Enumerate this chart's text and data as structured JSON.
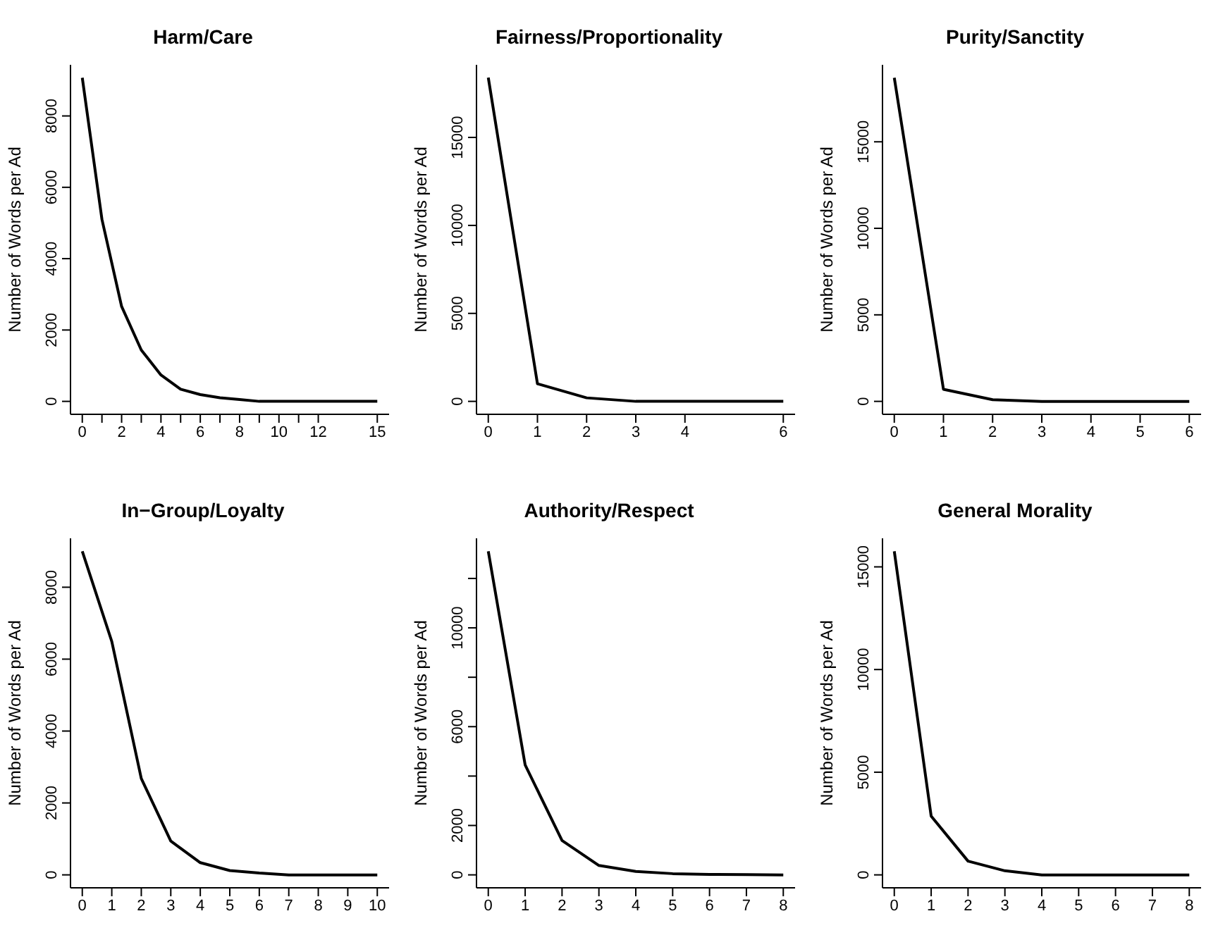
{
  "chart_data": [
    {
      "type": "line",
      "title": "Harm/Care",
      "ylabel": "Number of Words per Ad",
      "color": "#000000",
      "x": [
        0,
        1,
        2,
        3,
        4,
        5,
        6,
        7,
        8,
        9,
        10,
        11,
        12,
        15
      ],
      "values": [
        9070,
        5100,
        2660,
        1440,
        740,
        340,
        190,
        100,
        50,
        0,
        0,
        0,
        0,
        0
      ],
      "xlim": [
        -0.6,
        15.6
      ],
      "xticks": [
        0,
        {
          "value": 1,
          "label": null
        },
        2,
        {
          "value": 3,
          "label": null
        },
        4,
        {
          "value": 5,
          "label": null
        },
        6,
        {
          "value": 7,
          "label": null
        },
        8,
        {
          "value": 9,
          "label": null
        },
        10,
        {
          "value": 11,
          "label": null
        },
        12,
        15
      ],
      "ylim": [
        -363,
        9433
      ],
      "yticks": [
        0,
        2000,
        4000,
        6000,
        8000
      ]
    },
    {
      "type": "line",
      "title": "Fairness/Proportionality",
      "ylabel": "Number of Words per Ad",
      "color": "#000000",
      "x": [
        0,
        1,
        2,
        3,
        4,
        6
      ],
      "values": [
        18400,
        1000,
        200,
        0,
        0,
        0
      ],
      "xlim": [
        -0.24,
        6.24
      ],
      "xticks": [
        0,
        1,
        2,
        3,
        4,
        6
      ],
      "ylim": [
        -736,
        19126
      ],
      "yticks": [
        0,
        5000,
        10000,
        15000
      ]
    },
    {
      "type": "line",
      "title": "Purity/Sanctity",
      "ylabel": "Number of Words per Ad",
      "color": "#000000",
      "x": [
        0,
        1,
        2,
        3,
        4,
        5,
        6
      ],
      "values": [
        18700,
        700,
        100,
        0,
        0,
        0,
        0
      ],
      "xlim": [
        -0.24,
        6.24
      ],
      "xticks": [
        0,
        1,
        2,
        3,
        4,
        5,
        6
      ],
      "ylim": [
        -748,
        19448
      ],
      "yticks": [
        0,
        5000,
        10000,
        15000
      ]
    },
    {
      "type": "line",
      "title": "In−Group/Loyalty",
      "ylabel": "Number of Words per Ad",
      "color": "#000000",
      "x": [
        0,
        1,
        2,
        3,
        4,
        5,
        6,
        7,
        8,
        9,
        10
      ],
      "values": [
        9000,
        6490,
        2680,
        940,
        340,
        120,
        50,
        0,
        0,
        0,
        0
      ],
      "xlim": [
        -0.4,
        10.4
      ],
      "xticks": [
        0,
        1,
        2,
        3,
        4,
        5,
        6,
        7,
        8,
        9,
        10
      ],
      "ylim": [
        -360,
        9360
      ],
      "yticks": [
        0,
        2000,
        4000,
        6000,
        8000
      ]
    },
    {
      "type": "line",
      "title": "Authority/Respect",
      "ylabel": "Number of Words per Ad",
      "color": "#000000",
      "x": [
        0,
        1,
        2,
        3,
        4,
        5,
        6,
        7,
        8
      ],
      "values": [
        13100,
        4450,
        1390,
        380,
        140,
        50,
        20,
        10,
        0
      ],
      "xlim": [
        -0.32,
        8.32
      ],
      "xticks": [
        0,
        1,
        2,
        3,
        4,
        5,
        6,
        7,
        8
      ],
      "ylim": [
        -524,
        13624
      ],
      "yticks": [
        0,
        2000,
        {
          "value": 4000,
          "label": null
        },
        6000,
        {
          "value": 8000,
          "label": null
        },
        10000,
        {
          "value": 12000,
          "label": null
        }
      ]
    },
    {
      "type": "line",
      "title": "General Morality",
      "ylabel": "Number of Words per Ad",
      "color": "#000000",
      "x": [
        0,
        1,
        2,
        3,
        4,
        5,
        6,
        7,
        8
      ],
      "values": [
        15760,
        2860,
        670,
        200,
        0,
        0,
        0,
        0,
        0
      ],
      "xlim": [
        -0.32,
        8.32
      ],
      "xticks": [
        0,
        1,
        2,
        3,
        4,
        5,
        6,
        7,
        8
      ],
      "ylim": [
        -630,
        16390
      ],
      "yticks": [
        0,
        5000,
        10000,
        15000
      ]
    }
  ]
}
